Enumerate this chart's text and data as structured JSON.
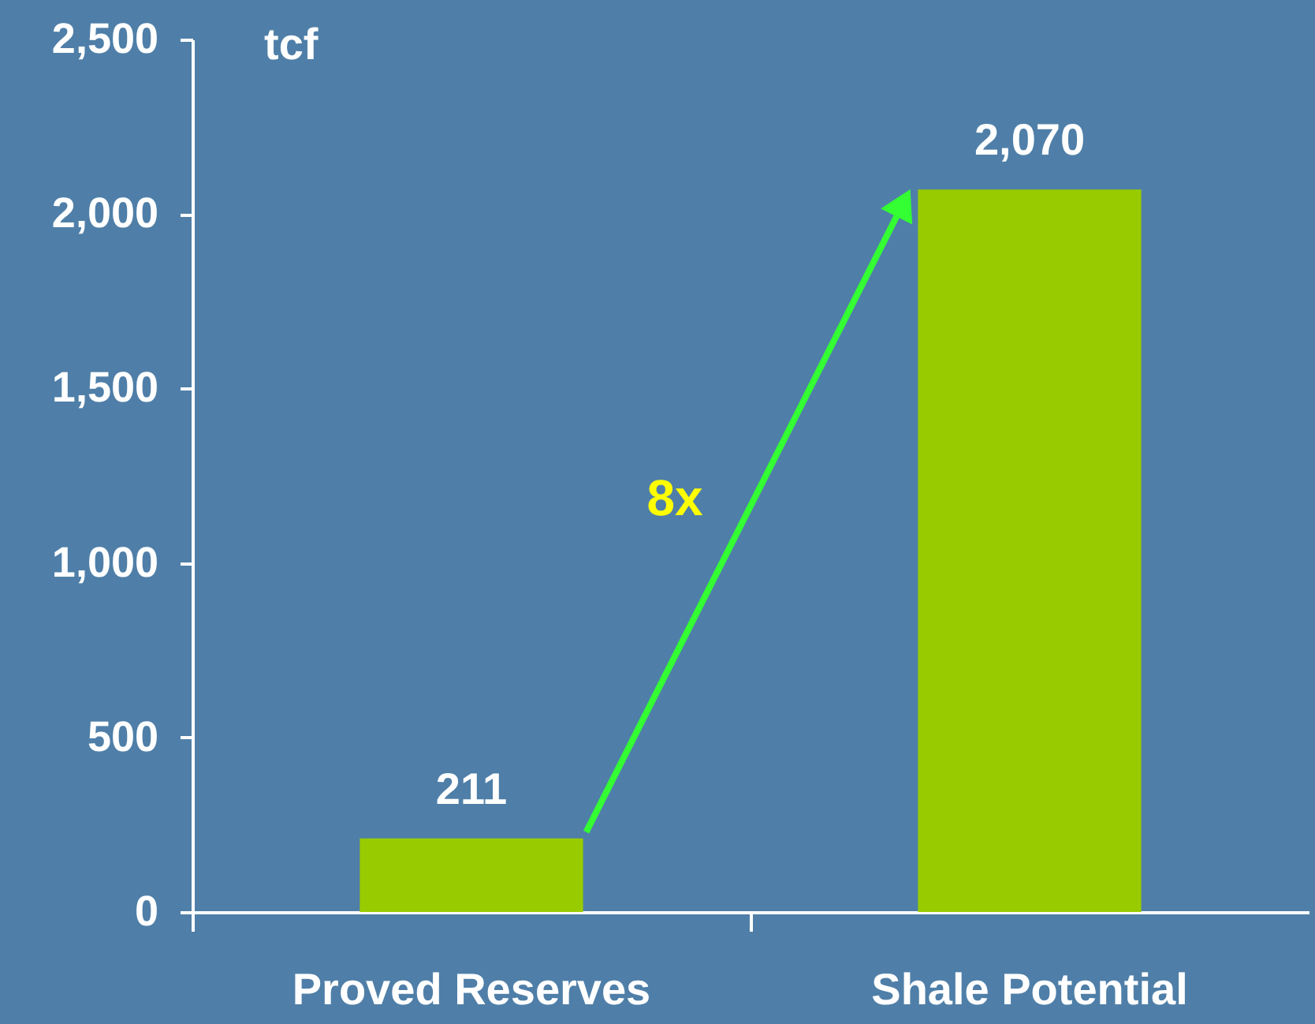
{
  "chart_data": {
    "type": "bar",
    "ylabel": "tcf",
    "categories": [
      "Proved Reserves",
      "Shale Potential"
    ],
    "values": [
      211,
      2070
    ],
    "color": "#99cc00",
    "ylim": [
      0,
      2500
    ],
    "yticks": [
      0,
      500,
      {
        "value": 1000,
        "label": "1,000"
      },
      {
        "value": 1500,
        "label": "1,500"
      },
      {
        "value": 2000,
        "label": "2,000"
      },
      {
        "value": 2500,
        "label": "2,500"
      }
    ],
    "value_labels": [
      "211",
      "2,070"
    ],
    "annotations": [
      "8x"
    ],
    "grid": false
  }
}
